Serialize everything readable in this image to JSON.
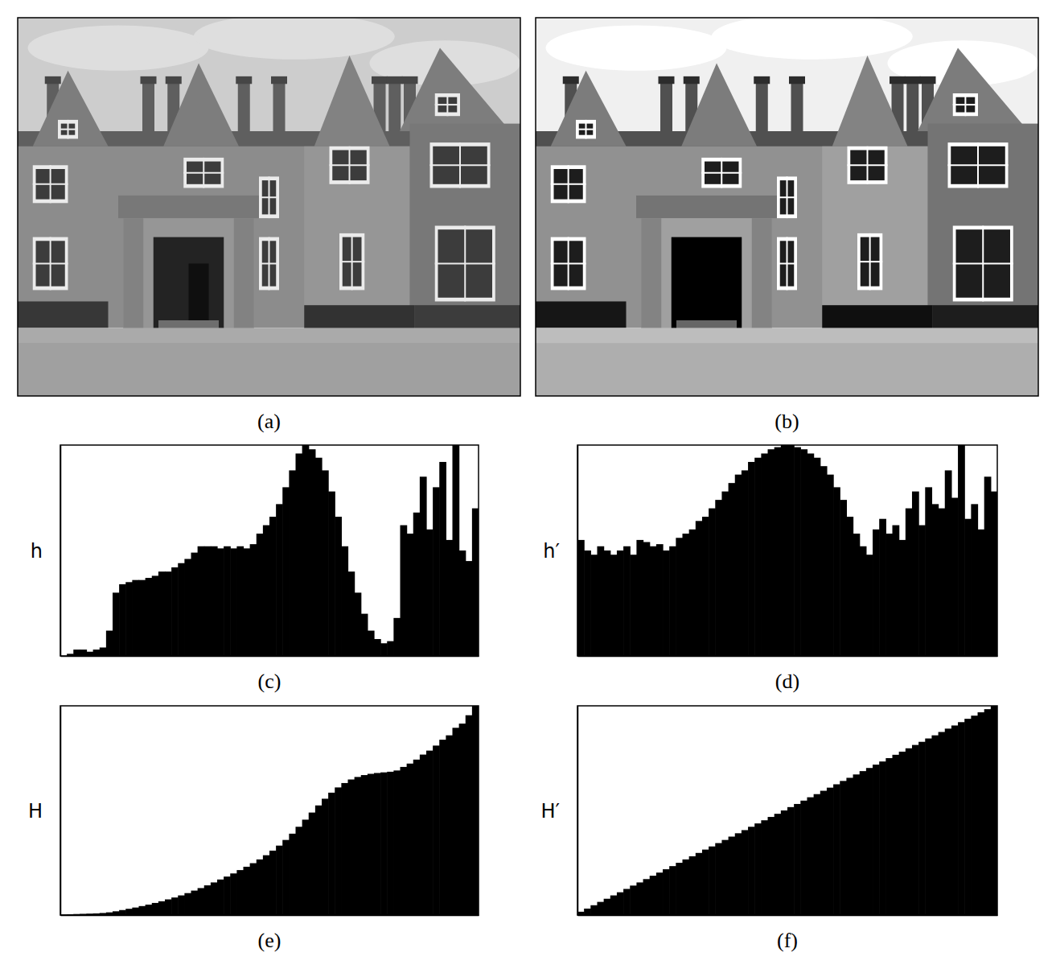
{
  "images": [
    {
      "caption": "(a)"
    },
    {
      "caption": "(b)"
    }
  ],
  "chart_data": [
    {
      "type": "histogram",
      "y_label": "h",
      "caption": "(c)",
      "color": "#000000",
      "xlim": [
        0,
        256
      ],
      "ylim": [
        0,
        100
      ],
      "tick_labels": false,
      "bins": [
        0,
        4,
        8,
        12,
        16,
        20,
        24,
        28,
        32,
        36,
        40,
        44,
        48,
        52,
        56,
        60,
        64,
        68,
        72,
        76,
        80,
        84,
        88,
        92,
        96,
        100,
        104,
        108,
        112,
        116,
        120,
        124,
        128,
        132,
        136,
        140,
        144,
        148,
        152,
        156,
        160,
        164,
        168,
        172,
        176,
        180,
        184,
        188,
        192,
        196,
        200,
        204,
        208,
        212,
        216,
        220,
        224,
        228,
        232,
        236,
        240,
        244,
        248,
        252,
        256
      ],
      "values": [
        0,
        1,
        3,
        3,
        2,
        3,
        4,
        12,
        30,
        34,
        35,
        36,
        36,
        37,
        38,
        40,
        40,
        42,
        44,
        46,
        49,
        52,
        52,
        52,
        51,
        52,
        51,
        52,
        51,
        53,
        58,
        62,
        66,
        72,
        80,
        88,
        96,
        100,
        98,
        94,
        88,
        78,
        66,
        52,
        40,
        30,
        20,
        12,
        8,
        6,
        7,
        18,
        62,
        58,
        68,
        85,
        60,
        80,
        92,
        55,
        100,
        50,
        45,
        70
      ]
    },
    {
      "type": "histogram",
      "y_label": "h′",
      "caption": "(d)",
      "color": "#000000",
      "xlim": [
        0,
        256
      ],
      "ylim": [
        0,
        100
      ],
      "tick_labels": false,
      "bins": [
        0,
        4,
        8,
        12,
        16,
        20,
        24,
        28,
        32,
        36,
        40,
        44,
        48,
        52,
        56,
        60,
        64,
        68,
        72,
        76,
        80,
        84,
        88,
        92,
        96,
        100,
        104,
        108,
        112,
        116,
        120,
        124,
        128,
        132,
        136,
        140,
        144,
        148,
        152,
        156,
        160,
        164,
        168,
        172,
        176,
        180,
        184,
        188,
        192,
        196,
        200,
        204,
        208,
        212,
        216,
        220,
        224,
        228,
        232,
        236,
        240,
        244,
        248,
        252,
        256
      ],
      "values": [
        55,
        50,
        48,
        52,
        50,
        48,
        50,
        52,
        48,
        55,
        54,
        52,
        53,
        50,
        52,
        56,
        58,
        60,
        64,
        66,
        70,
        74,
        78,
        82,
        86,
        88,
        92,
        94,
        96,
        98,
        99,
        100,
        100,
        99,
        98,
        96,
        94,
        90,
        86,
        80,
        74,
        66,
        58,
        52,
        48,
        60,
        65,
        58,
        62,
        55,
        70,
        78,
        62,
        80,
        72,
        70,
        88,
        75,
        100,
        65,
        72,
        60,
        85,
        78
      ]
    },
    {
      "type": "histogram",
      "y_label": "H",
      "caption": "(e)",
      "color": "#000000",
      "xlim": [
        0,
        256
      ],
      "ylim": [
        0,
        100
      ],
      "tick_labels": false,
      "bins": [
        0,
        4,
        8,
        12,
        16,
        20,
        24,
        28,
        32,
        36,
        40,
        44,
        48,
        52,
        56,
        60,
        64,
        68,
        72,
        76,
        80,
        84,
        88,
        92,
        96,
        100,
        104,
        108,
        112,
        116,
        120,
        124,
        128,
        132,
        136,
        140,
        144,
        148,
        152,
        156,
        160,
        164,
        168,
        172,
        176,
        180,
        184,
        188,
        192,
        196,
        200,
        204,
        208,
        212,
        216,
        220,
        224,
        228,
        232,
        236,
        240,
        244,
        248,
        252,
        256
      ],
      "values": [
        0.3,
        0.4,
        0.5,
        0.6,
        0.7,
        0.8,
        1,
        1.3,
        1.8,
        2.4,
        3,
        3.6,
        4.3,
        5,
        5.8,
        6.6,
        7.5,
        8.4,
        9.4,
        10.5,
        11.7,
        12.9,
        14.2,
        15.6,
        17,
        18.4,
        19.9,
        21.5,
        23.1,
        24.8,
        26.6,
        28.6,
        30.8,
        33.2,
        35.9,
        38.9,
        42.2,
        45.6,
        49,
        52.4,
        55.6,
        58.5,
        61,
        63.1,
        64.8,
        66,
        66.9,
        67.5,
        67.9,
        68.2,
        68.5,
        69.1,
        70.8,
        72.4,
        74.3,
        76.7,
        78.6,
        81,
        83.8,
        85.9,
        89.5,
        91.5,
        95.5,
        100
      ]
    },
    {
      "type": "histogram",
      "y_label": "H′",
      "caption": "(f)",
      "color": "#000000",
      "xlim": [
        0,
        256
      ],
      "ylim": [
        0,
        100
      ],
      "tick_labels": false,
      "bins": [
        0,
        4,
        8,
        12,
        16,
        20,
        24,
        28,
        32,
        36,
        40,
        44,
        48,
        52,
        56,
        60,
        64,
        68,
        72,
        76,
        80,
        84,
        88,
        92,
        96,
        100,
        104,
        108,
        112,
        116,
        120,
        124,
        128,
        132,
        136,
        140,
        144,
        148,
        152,
        156,
        160,
        164,
        168,
        172,
        176,
        180,
        184,
        188,
        192,
        196,
        200,
        204,
        208,
        212,
        216,
        220,
        224,
        228,
        232,
        236,
        240,
        244,
        248,
        252,
        256
      ],
      "values": [
        1.6,
        3.1,
        4.7,
        6.3,
        7.8,
        9.4,
        10.9,
        12.5,
        14.1,
        15.6,
        17.2,
        18.8,
        20.3,
        21.9,
        23.4,
        25,
        26.6,
        28.1,
        29.7,
        31.3,
        32.8,
        34.4,
        35.9,
        37.5,
        39.1,
        40.6,
        42.2,
        43.8,
        45.3,
        46.9,
        48.4,
        50,
        51.6,
        53.1,
        54.7,
        56.3,
        57.8,
        59.4,
        60.9,
        62.5,
        64.1,
        65.6,
        67.2,
        68.8,
        70.3,
        71.9,
        73.4,
        75,
        76.6,
        78.1,
        79.7,
        81.3,
        82.8,
        84.4,
        85.9,
        87.5,
        89.1,
        90.6,
        92.2,
        93.8,
        95.3,
        96.9,
        98.4,
        100
      ]
    }
  ]
}
